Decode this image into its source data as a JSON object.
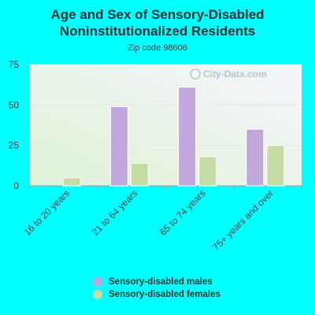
{
  "chart_data": {
    "type": "bar",
    "title_lines": [
      "Age and Sex of Sensory-Disabled",
      "Noninstitutionalized Residents"
    ],
    "subtitle": "Zip code 98606",
    "categories": [
      "16 to 20 years",
      "21 to 64 years",
      "65 to 74 years",
      "75+ years and over"
    ],
    "series": [
      {
        "name": "Sensory-disabled males",
        "color": "#c0a8dc",
        "values": [
          0,
          49,
          61,
          35
        ]
      },
      {
        "name": "Sensory-disabled females",
        "color": "#c6dba6",
        "values": [
          5,
          14,
          18,
          25
        ]
      }
    ],
    "ylim": [
      0,
      75
    ],
    "yticks": [
      0,
      25,
      50,
      75
    ],
    "grid": true,
    "legend_position": "bottom"
  },
  "watermark": "City-Data.com"
}
